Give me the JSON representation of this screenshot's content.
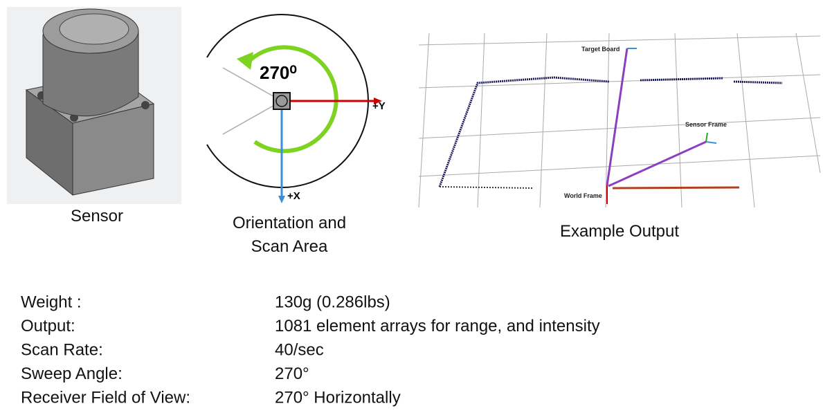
{
  "captions": {
    "sensor": "Sensor",
    "orientation": [
      "Orientation and",
      "Scan Area"
    ],
    "output": "Example Output"
  },
  "diagram": {
    "angle": "270⁰",
    "y_axis": "+Y",
    "x_axis": "+X"
  },
  "output_labels": {
    "target": "Target Board",
    "sensor": "Sensor Frame",
    "world": "World Frame"
  },
  "specs": [
    [
      "Weight :",
      "130g (0.286lbs)"
    ],
    [
      "Output:",
      "1081 element arrays for range, and intensity"
    ],
    [
      "Scan Rate:",
      "40/sec"
    ],
    [
      "Sweep Angle:",
      "270°"
    ],
    [
      "Receiver Field of View:",
      "270° Horizontally"
    ]
  ]
}
